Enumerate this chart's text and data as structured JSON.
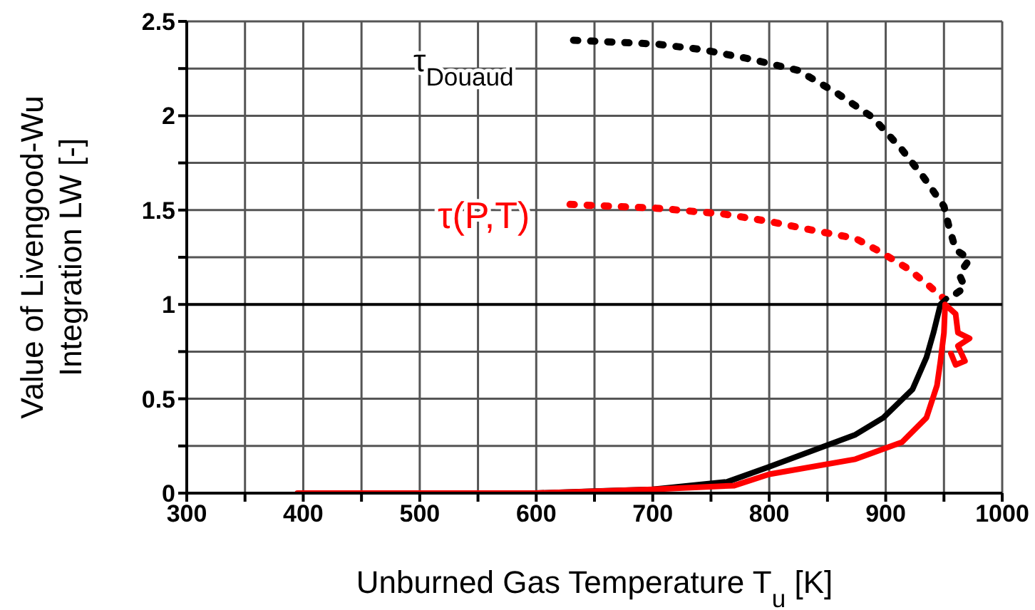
{
  "chart_data": {
    "type": "line",
    "xlabel": "Unburned Gas Temperature T$_{u}$ [K]",
    "ylabel": "Value of Livengood-Wu Integration LW [-]",
    "xlim": [
      300,
      1000
    ],
    "xticks": [
      300,
      {
        "value": 350,
        "label": null
      },
      400,
      {
        "value": 450,
        "label": null
      },
      500,
      {
        "value": 550,
        "label": null
      },
      600,
      {
        "value": 650,
        "label": null
      },
      700,
      {
        "value": 750,
        "label": null
      },
      800,
      {
        "value": 850,
        "label": null
      },
      900,
      {
        "value": 950,
        "label": null
      },
      1000
    ],
    "ylim": [
      0,
      2.5
    ],
    "yticks": [
      0,
      {
        "value": 0.25,
        "label": null
      },
      {
        "value": 0.5,
        "label": "0.5"
      },
      {
        "value": 0.75,
        "label": null
      },
      1,
      {
        "value": 1.25,
        "label": null
      },
      1.5,
      {
        "value": 1.75,
        "label": null
      },
      2,
      {
        "value": 2.25,
        "label": null
      },
      2.5
    ],
    "grid": true,
    "marker": "none",
    "ref_lines": [
      {
        "axis": "y",
        "value": 1,
        "color": "#000000"
      }
    ],
    "annotations": [
      "τ$_{Douaud}$",
      "τ(P,T)"
    ],
    "series": [
      {
        "color": "#000000",
        "line_style": "dotted",
        "x": [
          632,
          703,
          743,
          784,
          825,
          858,
          889,
          914,
          933,
          950,
          954,
          960,
          972,
          963,
          968,
          954
        ],
        "values": [
          2.4,
          2.38,
          2.35,
          2.3,
          2.24,
          2.12,
          1.99,
          1.82,
          1.67,
          1.52,
          1.42,
          1.29,
          1.24,
          1.16,
          1.09,
          1.03
        ]
      },
      {
        "color": "#ff0000",
        "line_style": "dotted",
        "x": [
          629,
          703,
          760,
          800,
          840,
          874,
          895,
          919,
          937,
          950
        ],
        "values": [
          1.53,
          1.51,
          1.48,
          1.44,
          1.39,
          1.35,
          1.28,
          1.19,
          1.1,
          1.03
        ]
      },
      {
        "color": "#000000",
        "line_style": "solid",
        "x": [
          400,
          600,
          650,
          700,
          764,
          800,
          874,
          898,
          923,
          935,
          941,
          947,
          952
        ],
        "values": [
          0,
          0,
          0.01,
          0.02,
          0.06,
          0.14,
          0.31,
          0.4,
          0.55,
          0.72,
          0.85,
          1.0,
          1.03
        ]
      },
      {
        "color": "#ff0000",
        "line_style": "solid",
        "x": [
          395,
          600,
          700,
          770,
          800,
          874,
          914,
          935,
          944,
          947,
          950,
          951,
          960,
          962,
          972,
          962,
          968,
          960,
          956
        ],
        "values": [
          0,
          0,
          0.02,
          0.04,
          0.1,
          0.18,
          0.27,
          0.4,
          0.57,
          0.7,
          0.85,
          1.0,
          0.95,
          0.85,
          0.82,
          0.78,
          0.7,
          0.68,
          0.74
        ]
      }
    ]
  }
}
